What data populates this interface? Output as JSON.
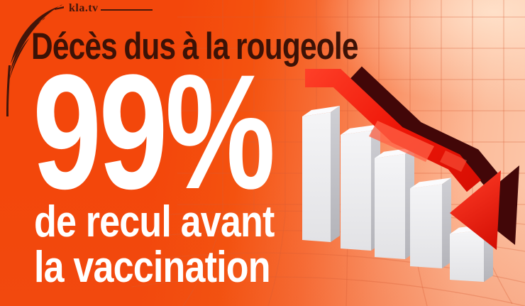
{
  "brand": {
    "wordmark": "kla.tv"
  },
  "headline": {
    "title": "Décès dus à la rougeole",
    "stat": "99%",
    "subtitle_line1": "de recul avant",
    "subtitle_line2": "la vaccination"
  },
  "chart_data": {
    "type": "bar",
    "title": "Décès dus à la rougeole",
    "headline_stat": "99%",
    "subtitle": "de recul avant la vaccination",
    "categories": [
      "",
      "",
      "",
      "",
      ""
    ],
    "values": [
      100,
      92,
      80,
      63,
      37
    ],
    "units": "relative bar height (decorative 3D chart, no axes or tick labels shown)",
    "trend_annotation": "thick red 3D arrow descending left-to-right ending over the smallest bar",
    "legend": false,
    "grid": true
  },
  "colors": {
    "background_orange": "#f4500f",
    "background_peach": "#fcc7aa",
    "grid_line": "#d95f38",
    "title_text": "#3c1206",
    "stat_text": "#ffffff",
    "arrow_red": "#ee1507",
    "arrow_highlight": "#ff6347",
    "arrow_dark_side": "#420708",
    "bar_front": "#ededef",
    "bar_top": "#fbfbfd",
    "bar_side": "#c2c2c7"
  }
}
